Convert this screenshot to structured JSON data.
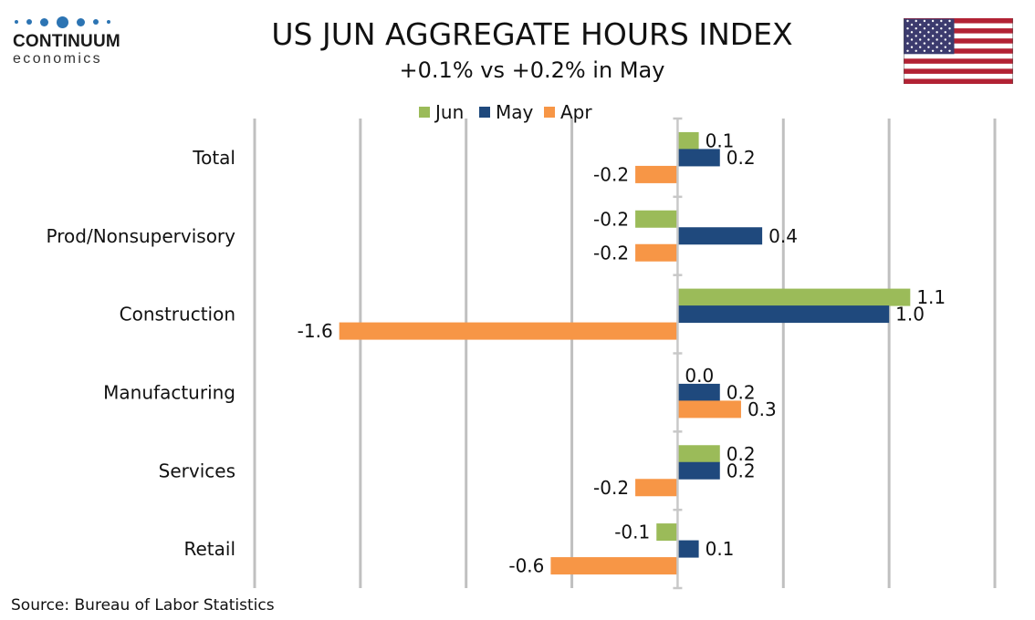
{
  "header": {
    "title": "US JUN AGGREGATE HOURS INDEX",
    "subtitle": "+0.1% vs +0.2% in May"
  },
  "logo": {
    "name": "CONTINUUM",
    "sub": "economics",
    "color": "#2c74b3"
  },
  "footer": {
    "source": "Source: Bureau of Labor Statistics"
  },
  "flag": {
    "icon": "us-flag-icon"
  },
  "chart_data": {
    "type": "bar",
    "orientation": "horizontal",
    "categories": [
      "Total",
      "Prod/Nonsupervisory",
      "Construction",
      "Manufacturing",
      "Services",
      "Retail"
    ],
    "series": [
      {
        "name": "Jun",
        "color": "#9bbb59",
        "values": [
          0.1,
          -0.2,
          1.1,
          0.0,
          0.2,
          -0.1
        ],
        "labels": [
          "0.1",
          "-0.2",
          "1.1",
          "0.0",
          "0.2",
          "-0.1"
        ]
      },
      {
        "name": "May",
        "color": "#1f497d",
        "values": [
          0.2,
          0.4,
          1.0,
          0.2,
          0.2,
          0.1
        ],
        "labels": [
          "0.2",
          "0.4",
          "1.0",
          "0.2",
          "0.2",
          "0.1"
        ]
      },
      {
        "name": "Apr",
        "color": "#f79646",
        "values": [
          -0.2,
          -0.2,
          -1.6,
          0.3,
          -0.2,
          -0.6
        ],
        "labels": [
          "-0.2",
          "-0.2",
          "-1.6",
          "0.3",
          "-0.2",
          "-0.6"
        ]
      }
    ],
    "xlim": [
      -2.0,
      1.5
    ],
    "grid_step": 0.5,
    "grid": true,
    "legend_position": "top",
    "gridline_color": "#c0c0c0"
  }
}
